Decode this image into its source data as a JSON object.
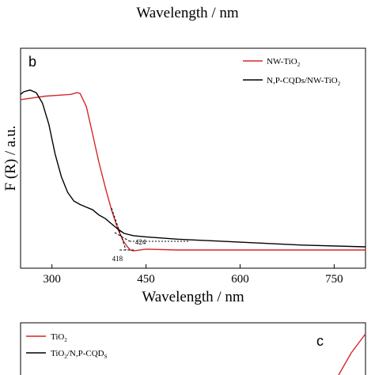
{
  "top_fragment": {
    "xlabel": "Wavelength / nm"
  },
  "chart_data": [
    {
      "type": "line",
      "panel_label": "b",
      "xlabel": "Wavelength / nm",
      "ylabel": "F (R) / a.u.",
      "xlim": [
        250,
        800
      ],
      "ylim": [
        0,
        1.0
      ],
      "x_ticks": [
        300,
        450,
        600,
        750
      ],
      "legend_position": "top-right",
      "legend": [
        {
          "name": "NW-TiO",
          "sub": "2",
          "after": ""
        },
        {
          "name": "N,P-CQDs/NW-TiO",
          "sub": "2",
          "after": ""
        }
      ],
      "series": [
        {
          "name": "NW-TiO2",
          "color": "#d62728",
          "x": [
            250,
            270,
            290,
            310,
            330,
            340,
            345,
            355,
            365,
            375,
            385,
            395,
            405,
            410,
            415,
            420,
            425,
            430,
            450,
            500,
            600,
            700,
            800
          ],
          "y": [
            0.86,
            0.87,
            0.88,
            0.885,
            0.89,
            0.9,
            0.895,
            0.82,
            0.66,
            0.5,
            0.36,
            0.23,
            0.12,
            0.08,
            0.045,
            0.02,
            0.0,
            -0.005,
            0.005,
            0.0,
            0.0,
            0.0,
            0.0
          ]
        },
        {
          "name": "N,P-CQDs/NW-TiO2",
          "color": "#000000",
          "x": [
            250,
            255,
            265,
            275,
            285,
            295,
            305,
            315,
            325,
            335,
            345,
            355,
            365,
            375,
            385,
            395,
            405,
            415,
            430,
            450,
            500,
            600,
            700,
            800
          ],
          "y": [
            0.89,
            0.905,
            0.915,
            0.9,
            0.84,
            0.72,
            0.55,
            0.42,
            0.33,
            0.28,
            0.26,
            0.245,
            0.23,
            0.2,
            0.18,
            0.15,
            0.12,
            0.095,
            0.082,
            0.075,
            0.062,
            0.045,
            0.028,
            0.018
          ]
        }
      ],
      "tangent_annotations": [
        {
          "label": "418",
          "x": 418
        },
        {
          "label": "424",
          "x": 424
        }
      ]
    },
    {
      "type": "line",
      "panel_label": "c",
      "legend_position": "top-left",
      "legend": [
        {
          "name": "TiO",
          "sub": "2",
          "after": ""
        },
        {
          "name": "TiO",
          "sub": "2",
          "after": "/N,P-CQD",
          "after_sub": "S"
        }
      ],
      "series": [
        {
          "name": "TiO2",
          "color": "#d62728"
        },
        {
          "name": "TiO2/N,P-CQDs",
          "color": "#000000"
        }
      ]
    }
  ]
}
